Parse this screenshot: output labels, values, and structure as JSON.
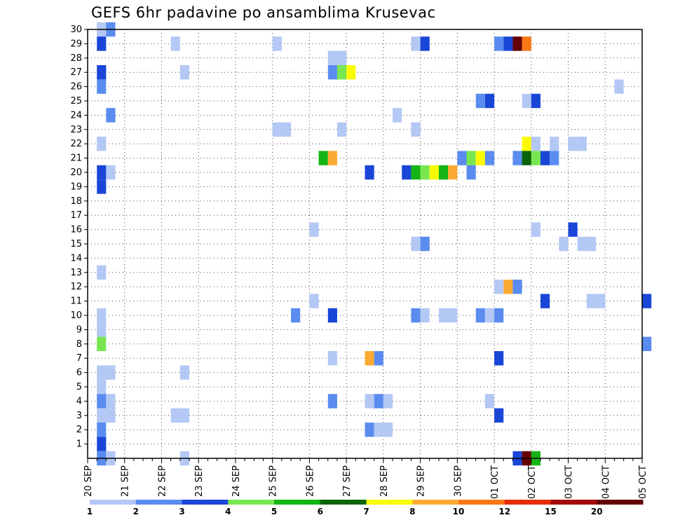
{
  "chart_data": {
    "type": "heatmap",
    "title": "GEFS 6hr padavine po ansamblima Krusevac",
    "y_ticks": [
      "1",
      "2",
      "3",
      "4",
      "5",
      "6",
      "7",
      "8",
      "9",
      "10",
      "11",
      "12",
      "13",
      "14",
      "15",
      "16",
      "17",
      "18",
      "19",
      "20",
      "21",
      "22",
      "23",
      "24",
      "25",
      "26",
      "27",
      "28",
      "29",
      "30"
    ],
    "y_range": [
      0,
      30
    ],
    "x_range_steps": [
      0,
      60
    ],
    "x_date_labels": [
      {
        "label": "20 SEP",
        "step": 0
      },
      {
        "label": "21 SEP",
        "step": 4
      },
      {
        "label": "22 SEP",
        "step": 8
      },
      {
        "label": "23 SEP",
        "step": 12
      },
      {
        "label": "24 SEP",
        "step": 16
      },
      {
        "label": "25 SEP",
        "step": 20
      },
      {
        "label": "26 SEP",
        "step": 24
      },
      {
        "label": "27 SEP",
        "step": 28
      },
      {
        "label": "28 SEP",
        "step": 32
      },
      {
        "label": "29 SEP",
        "step": 36
      },
      {
        "label": "30 SEP",
        "step": 40
      },
      {
        "label": "01 OCT",
        "step": 44
      },
      {
        "label": "02 OCT",
        "step": 48
      },
      {
        "label": "03 OCT",
        "step": 52
      },
      {
        "label": "04 OCT",
        "step": 56
      },
      {
        "label": "05 OCT",
        "step": 60
      }
    ],
    "levels": [
      {
        "label": "1",
        "color": "#b4c8f5"
      },
      {
        "label": "2",
        "color": "#5a8cf0"
      },
      {
        "label": "3",
        "color": "#1a46d8"
      },
      {
        "label": "4",
        "color": "#78e650"
      },
      {
        "label": "5",
        "color": "#14b414"
      },
      {
        "label": "6",
        "color": "#0a640a"
      },
      {
        "label": "7",
        "color": "#fafa00"
      },
      {
        "label": "8",
        "color": "#faaa32"
      },
      {
        "label": "10",
        "color": "#fa7814"
      },
      {
        "label": "12",
        "color": "#e62d0a"
      },
      {
        "label": "15",
        "color": "#a50a0a"
      },
      {
        "label": "20",
        "color": "#640000"
      }
    ],
    "cells": [
      [
        1,
        30,
        0
      ],
      [
        2,
        30,
        1
      ],
      [
        1,
        29,
        2
      ],
      [
        9,
        29,
        0
      ],
      [
        20,
        29,
        0
      ],
      [
        35,
        29,
        0
      ],
      [
        36,
        29,
        2
      ],
      [
        44,
        29,
        1
      ],
      [
        45,
        29,
        2
      ],
      [
        46,
        29,
        11
      ],
      [
        47,
        29,
        8
      ],
      [
        26,
        28,
        0
      ],
      [
        27,
        28,
        0
      ],
      [
        1,
        27,
        2
      ],
      [
        10,
        27,
        0
      ],
      [
        26,
        27,
        1
      ],
      [
        27,
        27,
        3
      ],
      [
        28,
        27,
        6
      ],
      [
        1,
        26,
        1
      ],
      [
        57,
        26,
        0
      ],
      [
        42,
        25,
        1
      ],
      [
        43,
        25,
        2
      ],
      [
        47,
        25,
        0
      ],
      [
        48,
        25,
        2
      ],
      [
        2,
        24,
        1
      ],
      [
        33,
        24,
        0
      ],
      [
        20,
        23,
        0
      ],
      [
        21,
        23,
        0
      ],
      [
        27,
        23,
        0
      ],
      [
        35,
        23,
        0
      ],
      [
        1,
        22,
        0
      ],
      [
        47,
        22,
        6
      ],
      [
        48,
        22,
        0
      ],
      [
        50,
        22,
        0
      ],
      [
        52,
        22,
        0
      ],
      [
        53,
        22,
        0
      ],
      [
        25,
        21,
        4
      ],
      [
        26,
        21,
        7
      ],
      [
        40,
        21,
        1
      ],
      [
        41,
        21,
        3
      ],
      [
        42,
        21,
        6
      ],
      [
        43,
        21,
        1
      ],
      [
        46,
        21,
        1
      ],
      [
        47,
        21,
        5
      ],
      [
        48,
        21,
        3
      ],
      [
        49,
        21,
        2
      ],
      [
        50,
        21,
        1
      ],
      [
        1,
        20,
        2
      ],
      [
        2,
        20,
        0
      ],
      [
        30,
        20,
        2
      ],
      [
        34,
        20,
        2
      ],
      [
        35,
        20,
        4
      ],
      [
        36,
        20,
        3
      ],
      [
        37,
        20,
        6
      ],
      [
        38,
        20,
        4
      ],
      [
        39,
        20,
        7
      ],
      [
        41,
        20,
        1
      ],
      [
        1,
        19,
        2
      ],
      [
        24,
        16,
        0
      ],
      [
        48,
        16,
        0
      ],
      [
        52,
        16,
        2
      ],
      [
        35,
        15,
        0
      ],
      [
        36,
        15,
        1
      ],
      [
        51,
        15,
        0
      ],
      [
        53,
        15,
        0
      ],
      [
        54,
        15,
        0
      ],
      [
        1,
        13,
        0
      ],
      [
        44,
        12,
        0
      ],
      [
        45,
        12,
        7
      ],
      [
        46,
        12,
        1
      ],
      [
        24,
        11,
        0
      ],
      [
        49,
        11,
        2
      ],
      [
        54,
        11,
        0
      ],
      [
        55,
        11,
        0
      ],
      [
        60,
        11,
        2
      ],
      [
        1,
        10,
        0
      ],
      [
        22,
        10,
        1
      ],
      [
        26,
        10,
        2
      ],
      [
        35,
        10,
        1
      ],
      [
        36,
        10,
        0
      ],
      [
        38,
        10,
        0
      ],
      [
        39,
        10,
        0
      ],
      [
        42,
        10,
        1
      ],
      [
        43,
        10,
        0
      ],
      [
        44,
        10,
        1
      ],
      [
        1,
        9,
        0
      ],
      [
        1,
        8,
        3
      ],
      [
        60,
        8,
        1
      ],
      [
        26,
        7,
        0
      ],
      [
        30,
        7,
        7
      ],
      [
        31,
        7,
        1
      ],
      [
        44,
        7,
        2
      ],
      [
        1,
        6,
        0
      ],
      [
        2,
        6,
        0
      ],
      [
        10,
        6,
        0
      ],
      [
        1,
        5,
        0
      ],
      [
        1,
        4,
        1
      ],
      [
        2,
        4,
        0
      ],
      [
        26,
        4,
        1
      ],
      [
        30,
        4,
        0
      ],
      [
        31,
        4,
        1
      ],
      [
        32,
        4,
        0
      ],
      [
        43,
        4,
        0
      ],
      [
        1,
        3,
        0
      ],
      [
        2,
        3,
        0
      ],
      [
        9,
        3,
        0
      ],
      [
        10,
        3,
        0
      ],
      [
        44,
        3,
        2
      ],
      [
        1,
        2,
        1
      ],
      [
        30,
        2,
        1
      ],
      [
        31,
        2,
        0
      ],
      [
        32,
        2,
        0
      ],
      [
        1,
        1,
        2
      ],
      [
        1,
        0,
        1
      ],
      [
        2,
        0,
        0
      ],
      [
        10,
        0,
        0
      ],
      [
        46,
        0,
        2
      ],
      [
        47,
        0,
        11
      ],
      [
        48,
        0,
        4
      ]
    ]
  }
}
